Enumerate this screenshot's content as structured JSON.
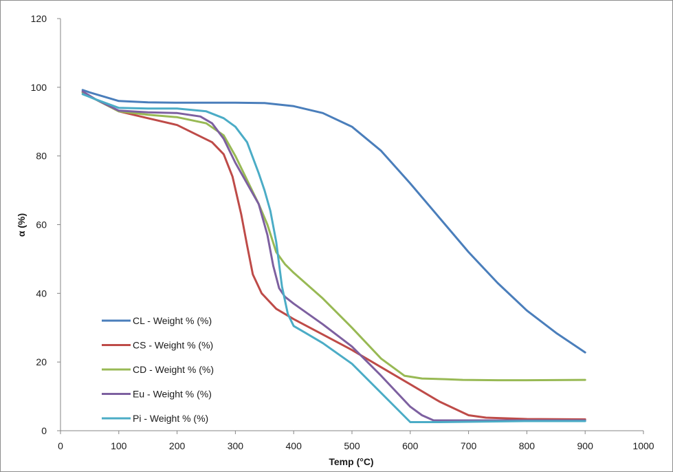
{
  "chart_data": {
    "type": "line",
    "title": "",
    "xlabel": "Temp (°C)",
    "ylabel": "α (%)",
    "xlim": [
      0,
      1000
    ],
    "ylim": [
      0,
      120
    ],
    "xticks": [
      0,
      100,
      200,
      300,
      400,
      500,
      600,
      700,
      800,
      900,
      1000
    ],
    "yticks": [
      0,
      20,
      40,
      60,
      80,
      100,
      120
    ],
    "grid": false,
    "legend_position": "bottom-left",
    "series": [
      {
        "name": "CL - Weight % (%)",
        "color": "#4a7ebb",
        "x": [
          38,
          50,
          70,
          100,
          150,
          200,
          250,
          300,
          350,
          400,
          450,
          500,
          550,
          600,
          650,
          700,
          750,
          800,
          850,
          900
        ],
        "y": [
          99.2,
          98.5,
          97.5,
          96.0,
          95.6,
          95.5,
          95.5,
          95.5,
          95.4,
          94.5,
          92.5,
          88.5,
          81.5,
          72.0,
          62.0,
          52.0,
          43.0,
          35.0,
          28.5,
          22.8
        ]
      },
      {
        "name": "CS - Weight % (%)",
        "color": "#be4b48",
        "x": [
          38,
          60,
          100,
          150,
          200,
          230,
          260,
          280,
          295,
          310,
          320,
          330,
          345,
          370,
          400,
          450,
          500,
          550,
          600,
          650,
          700,
          730,
          800,
          900
        ],
        "y": [
          98.5,
          96.5,
          93.0,
          91.0,
          89.0,
          86.5,
          84.0,
          80.5,
          74.0,
          63.0,
          54.0,
          45.5,
          40.0,
          35.5,
          32.5,
          28.0,
          23.5,
          18.5,
          13.5,
          8.5,
          4.5,
          3.8,
          3.4,
          3.3
        ]
      },
      {
        "name": "CD - Weight % (%)",
        "color": "#98b954",
        "x": [
          38,
          60,
          100,
          150,
          200,
          250,
          280,
          300,
          320,
          340,
          355,
          370,
          385,
          400,
          450,
          500,
          550,
          590,
          620,
          660,
          690,
          750,
          800,
          900
        ],
        "y": [
          98.5,
          96.5,
          93.0,
          92.0,
          91.3,
          89.5,
          86.0,
          80.0,
          73.0,
          66.0,
          60.0,
          52.0,
          48.5,
          46.0,
          38.5,
          30.0,
          21.0,
          16.0,
          15.2,
          15.0,
          14.8,
          14.7,
          14.7,
          14.8
        ]
      },
      {
        "name": "Eu - Weight % (%)",
        "color": "#7d60a0",
        "x": [
          38,
          60,
          100,
          150,
          200,
          240,
          260,
          280,
          300,
          320,
          340,
          355,
          365,
          375,
          385,
          400,
          450,
          500,
          550,
          600,
          620,
          640,
          660,
          700,
          800,
          900
        ],
        "y": [
          98.8,
          96.5,
          93.2,
          92.7,
          92.5,
          91.5,
          89.5,
          85.0,
          78.0,
          72.0,
          66.0,
          57.0,
          48.0,
          41.5,
          39.0,
          37.0,
          31.0,
          24.5,
          16.0,
          7.0,
          4.5,
          3.0,
          3.0,
          3.0,
          3.0,
          3.0
        ]
      },
      {
        "name": "Pi - Weight % (%)",
        "color": "#4bacc6",
        "x": [
          38,
          60,
          100,
          150,
          200,
          250,
          280,
          300,
          320,
          340,
          350,
          360,
          370,
          380,
          390,
          400,
          420,
          450,
          500,
          550,
          600,
          650,
          700,
          800,
          900
        ],
        "y": [
          98.0,
          96.5,
          94.0,
          93.8,
          93.8,
          93.0,
          91.0,
          88.5,
          84.0,
          75.0,
          70.0,
          64.0,
          55.0,
          42.0,
          34.0,
          30.5,
          28.5,
          25.5,
          19.5,
          11.0,
          2.5,
          2.5,
          2.6,
          2.8,
          2.8
        ]
      }
    ]
  }
}
